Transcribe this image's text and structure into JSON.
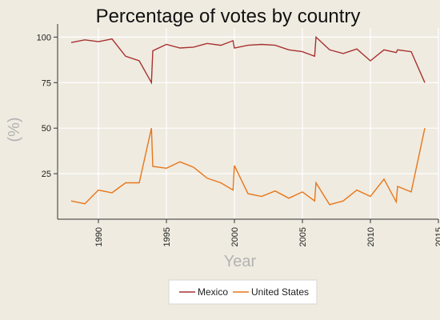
{
  "chart_data": {
    "type": "line",
    "title": "Percentage of votes by country",
    "xlabel": "Year",
    "ylabel": "(%)",
    "xlim": [
      1987,
      2015
    ],
    "ylim": [
      0,
      105
    ],
    "x_ticks": [
      1990,
      1995,
      2000,
      2005,
      2010,
      2015
    ],
    "y_ticks": [
      25,
      50,
      75,
      100
    ],
    "grid": true,
    "legend_position": "bottom",
    "series": [
      {
        "name": "Mexico",
        "color": "#a83232",
        "points": [
          [
            1988,
            97
          ],
          [
            1989,
            98.5
          ],
          [
            1990,
            97.5
          ],
          [
            1991,
            99
          ],
          [
            1992,
            89.5
          ],
          [
            1993,
            87
          ],
          [
            1993.9,
            75
          ],
          [
            1994,
            92.5
          ],
          [
            1995,
            96
          ],
          [
            1996,
            94
          ],
          [
            1997,
            94.5
          ],
          [
            1998,
            96.5
          ],
          [
            1999,
            95.5
          ],
          [
            1999.9,
            98
          ],
          [
            2000,
            94
          ],
          [
            2001,
            95.5
          ],
          [
            2002,
            96
          ],
          [
            2003,
            95.5
          ],
          [
            2004,
            93
          ],
          [
            2005,
            92
          ],
          [
            2005.9,
            89.5
          ],
          [
            2006,
            100
          ],
          [
            2007,
            93
          ],
          [
            2008,
            91
          ],
          [
            2009,
            93.5
          ],
          [
            2010,
            87
          ],
          [
            2011,
            93
          ],
          [
            2011.9,
            91.5
          ],
          [
            2012,
            93
          ],
          [
            2013,
            92
          ],
          [
            2014,
            75
          ]
        ]
      },
      {
        "name": "United States",
        "color": "#e8761a",
        "points": [
          [
            1988,
            10
          ],
          [
            1989,
            8.5
          ],
          [
            1990,
            16
          ],
          [
            1991,
            14.5
          ],
          [
            1992,
            20
          ],
          [
            1993,
            20
          ],
          [
            1993.9,
            50
          ],
          [
            1994,
            29
          ],
          [
            1995,
            28
          ],
          [
            1996,
            31.5
          ],
          [
            1997,
            28.5
          ],
          [
            1998,
            22.5
          ],
          [
            1999,
            20
          ],
          [
            1999.9,
            16
          ],
          [
            2000,
            29.5
          ],
          [
            2001,
            14
          ],
          [
            2002,
            12.5
          ],
          [
            2003,
            15.5
          ],
          [
            2004,
            11.5
          ],
          [
            2005,
            15
          ],
          [
            2005.9,
            10
          ],
          [
            2006,
            20
          ],
          [
            2007,
            8
          ],
          [
            2008,
            10
          ],
          [
            2009,
            16
          ],
          [
            2010,
            12.5
          ],
          [
            2011,
            22
          ],
          [
            2011.9,
            9.5
          ],
          [
            2012,
            18
          ],
          [
            2013,
            15
          ],
          [
            2014,
            50
          ]
        ]
      }
    ]
  }
}
